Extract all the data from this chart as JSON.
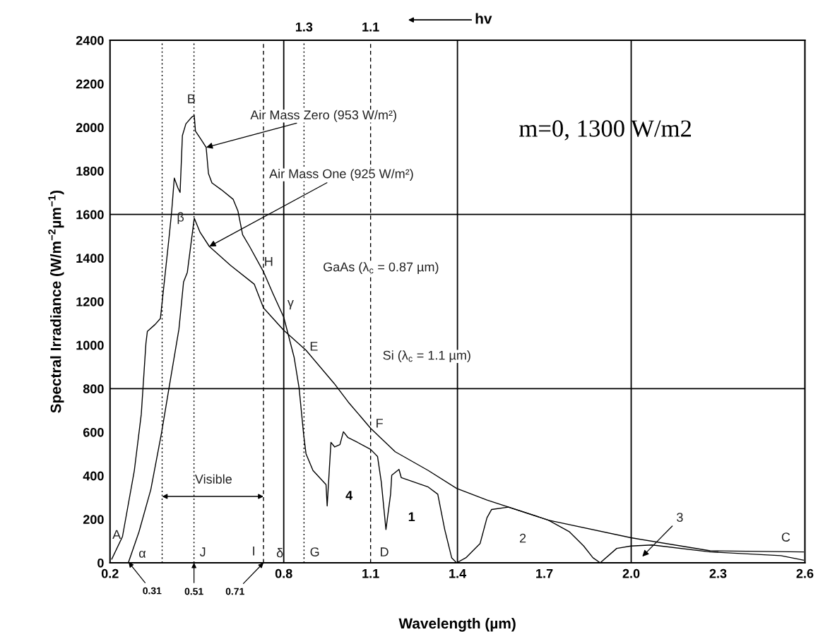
{
  "chart_data": {
    "type": "line",
    "xlabel": "Wavelength (µm)",
    "ylabel": "Spectral Irradiance (W/m$^{−2}$µm$^{−1}$)",
    "xlim": [
      0.2,
      2.6
    ],
    "xticks": [
      0.2,
      0.8,
      1.1,
      1.4,
      1.7,
      {
        "value": 2.0,
        "label": "2.0"
      },
      2.3,
      2.6
    ],
    "ylim": [
      0,
      2400
    ],
    "yticks": [
      0,
      200,
      400,
      600,
      800,
      1000,
      1200,
      1400,
      1600,
      1800,
      2000,
      2200,
      2400
    ],
    "grid": false,
    "marker": "none",
    "line_style": "solid",
    "series": [
      {
        "color": "#000000",
        "x": [
          0.206,
          0.243,
          0.284,
          0.308,
          0.324,
          0.329,
          0.356,
          0.374,
          0.405,
          0.413,
          0.422,
          0.434,
          0.442,
          0.45,
          0.462,
          0.483,
          0.491,
          0.495,
          0.511,
          0.532,
          0.54,
          0.552,
          0.585,
          0.625,
          0.642,
          0.658,
          0.682,
          0.731,
          0.763,
          0.8,
          0.836,
          0.853,
          0.869,
          0.877,
          0.901,
          0.946,
          0.95,
          0.963,
          0.976,
          0.994,
          1.006,
          1.022,
          1.055,
          1.1,
          1.124,
          1.137,
          1.153,
          1.169,
          1.173,
          1.198,
          1.206,
          1.299,
          1.332,
          1.356,
          1.38,
          1.397,
          1.429,
          1.478,
          1.502,
          1.518,
          1.576,
          1.714,
          1.787,
          1.836,
          1.868,
          1.893,
          1.95,
          1.999,
          2.072,
          2.273,
          2.517,
          2.595
        ],
        "values": [
          17,
          120,
          424,
          683,
          1008,
          1063,
          1095,
          1122,
          1508,
          1615,
          1767,
          1723,
          1701,
          1962,
          2016,
          2048,
          2054,
          1983,
          1951,
          1908,
          1788,
          1745,
          1713,
          1670,
          1615,
          1507,
          1453,
          1334,
          1236,
          1128,
          943,
          803,
          586,
          500,
          424,
          359,
          261,
          553,
          532,
          543,
          602,
          575,
          553,
          521,
          488,
          370,
          153,
          315,
          402,
          429,
          391,
          348,
          315,
          153,
          23,
          0,
          23,
          88,
          207,
          245,
          256,
          196,
          142,
          77,
          23,
          0,
          66,
          77,
          82,
          50,
          33,
          12
        ]
      },
      {
        "color": "#000000",
        "x": [
          0.264,
          0.3,
          0.341,
          0.378,
          0.405,
          0.438,
          0.454,
          0.467,
          0.491,
          0.511,
          0.543,
          0.616,
          0.698,
          0.73,
          0.8,
          0.877,
          0.974,
          1.023,
          1.1,
          1.185,
          1.299,
          1.397,
          1.502,
          1.714,
          1.999,
          2.273,
          2.595
        ],
        "values": [
          3,
          142,
          337,
          597,
          813,
          1073,
          1290,
          1334,
          1583,
          1518,
          1453,
          1366,
          1280,
          1171,
          1068,
          976,
          824,
          738,
          618,
          510,
          424,
          342,
          288,
          196,
          115,
          55,
          50
        ]
      }
    ],
    "ref_lines": [
      {
        "axis": "x",
        "value": 0.38,
        "color": "#000000",
        "line_style": "dotted"
      },
      {
        "axis": "x",
        "value": 0.49,
        "color": "#000000",
        "line_style": "dotted"
      },
      {
        "axis": "x",
        "value": 0.73,
        "color": "#000000",
        "line_style": "dashed"
      },
      {
        "axis": "x",
        "value": 0.87,
        "color": "#000000",
        "line_style": "dotted"
      },
      {
        "axis": "x",
        "value": 1.1,
        "color": "#000000",
        "line_style": "dashed"
      },
      {
        "axis": "x",
        "value": 0.8,
        "color": "#000000",
        "line_style": "solid"
      },
      {
        "axis": "x",
        "value": 1.4,
        "color": "#000000",
        "line_style": "solid"
      },
      {
        "axis": "x",
        "value": 2.0,
        "color": "#000000",
        "line_style": "solid"
      },
      {
        "axis": "y",
        "value": 800,
        "color": "#000000",
        "line_style": "solid"
      },
      {
        "axis": "y",
        "value": 1600,
        "color": "#000000",
        "line_style": "solid"
      }
    ],
    "annotations": [
      {
        "text": "A",
        "x": 0.206,
        "y": 17
      },
      {
        "text": "B",
        "x": 0.491,
        "y": 2054
      },
      {
        "text": "C",
        "x": 2.595,
        "y": 50
      },
      {
        "text": "α",
        "x": 0.264,
        "y": 3
      },
      {
        "text": "β",
        "x": 0.491,
        "y": 1583
      },
      {
        "text": "γ",
        "x": 0.8,
        "y": 1128
      },
      {
        "text": "δ",
        "x": 0.8,
        "y": 0
      },
      {
        "text": "E",
        "x": 0.877,
        "y": 976
      },
      {
        "text": "F",
        "x": 1.1,
        "y": 618
      },
      {
        "text": "G",
        "x": 0.87,
        "y": 0
      },
      {
        "text": "H",
        "x": 0.731,
        "y": 1334
      },
      {
        "text": "I",
        "x": 0.73,
        "y": 0
      },
      {
        "text": "J",
        "x": 0.49,
        "y": 0
      },
      {
        "text": "D",
        "x": 1.1,
        "y": 0
      },
      "1",
      "2",
      "4",
      "3",
      "Visible",
      "GaAs (λ$_{c}$ = 0.87 µm)",
      "Si (λ$_{c}$ = 1.1 µm)",
      {
        "text": "Air Mass Zero (953 W/m²)",
        "x": 0.532,
        "y": 1908
      },
      {
        "text": "Air Mass One (925 W/m²)",
        "x": 0.543,
        "y": 1453
      },
      "m=0, 1300 W/m2",
      {
        "text": "0.31",
        "x": 0.264,
        "y": 3
      },
      {
        "text": "0.51",
        "x": 0.49,
        "y": 0
      },
      {
        "text": "0.71",
        "x": 0.73,
        "y": 0
      },
      "hv",
      "1.3",
      "1.1"
    ]
  }
}
